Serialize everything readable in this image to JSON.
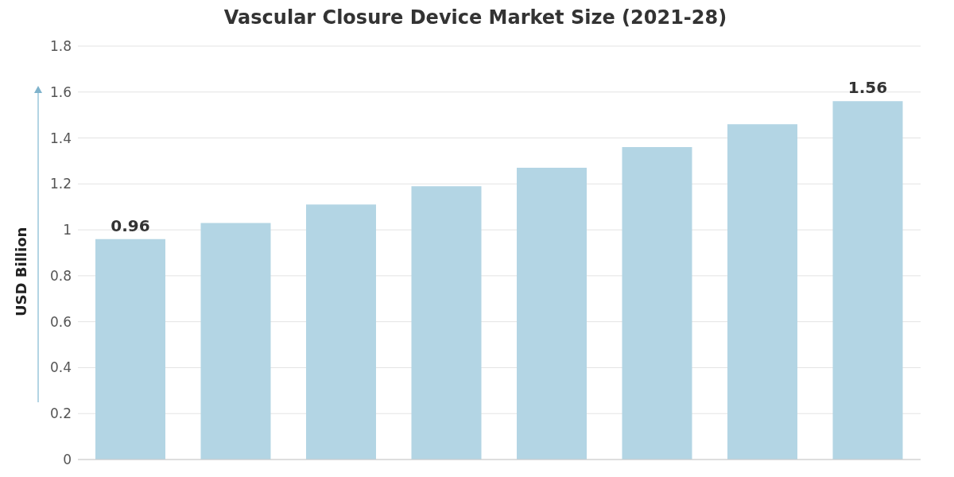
{
  "chart_data": {
    "type": "bar",
    "title": "Vascular Closure Device Market Size (2021-28)",
    "ylabel": "USD Billion",
    "categories": [
      null,
      null,
      null,
      null,
      null,
      null,
      null,
      null
    ],
    "values": [
      0.96,
      1.03,
      1.11,
      1.19,
      1.27,
      1.36,
      1.46,
      1.56
    ],
    "value_labels": [
      "0.96",
      null,
      null,
      null,
      null,
      null,
      null,
      "1.56"
    ],
    "color": "#b3d5e4",
    "ylim": [
      0,
      1.8
    ],
    "yticks": [
      0,
      0.2,
      0.4,
      0.6,
      0.8,
      1,
      1.2,
      1.4,
      1.6,
      1.8
    ],
    "grid": "y"
  }
}
